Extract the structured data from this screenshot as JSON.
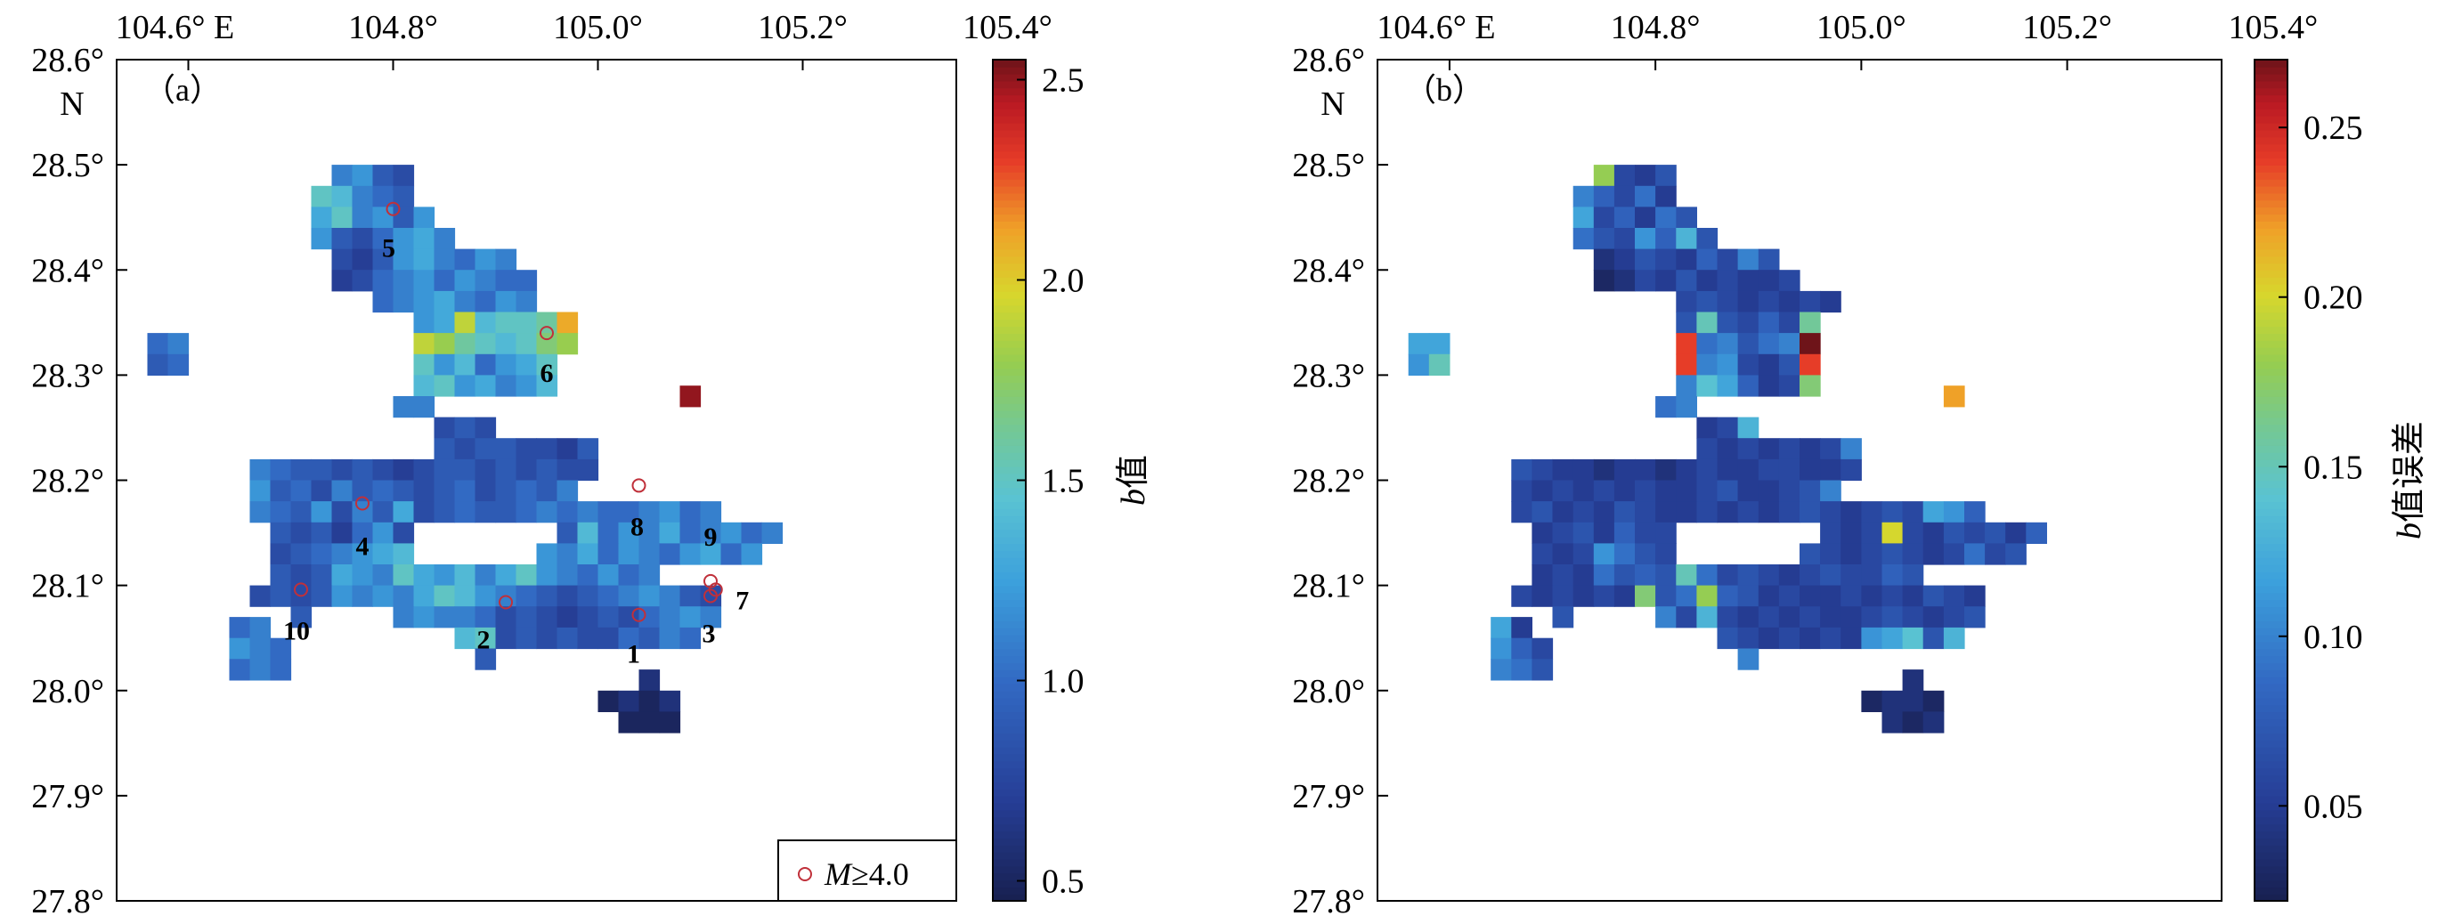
{
  "figure": {
    "x_ticks": [
      "104.6° E",
      "104.8°",
      "105.0°",
      "105.2°",
      "105.4°"
    ],
    "y_ticks": [
      "28.6°",
      "28.5°",
      "28.4°",
      "28.3°",
      "28.2°",
      "28.1°",
      "28.0°",
      "27.9°",
      "27.8°"
    ],
    "north_label": "N",
    "legend_label_italic": "M",
    "legend_label_rest": "≥4.0"
  },
  "chart_data": [
    {
      "type": "heatmap",
      "panel_label": "（a）",
      "xlim": [
        104.53,
        105.35
      ],
      "ylim": [
        27.8,
        28.6
      ],
      "cell_size_deg": 0.02,
      "colorbar": {
        "label_italic": "b",
        "label_rest": "值",
        "range": [
          0.45,
          2.55
        ],
        "ticks": [
          0.5,
          1.0,
          1.5,
          2.0,
          2.5
        ],
        "tick_labels": [
          "0.5",
          "1.0",
          "1.5",
          "2.0",
          "2.5"
        ]
      },
      "cell_values_note": "approximate b values per 0.02° grid cell; rows listed north to south",
      "rows": [
        {
          "lat": 28.49,
          "lon0": 104.74,
          "values": [
            1.1,
            1.2,
            0.9,
            0.8
          ]
        },
        {
          "lat": 28.47,
          "lon0": 104.72,
          "values": [
            1.5,
            1.4,
            1.1,
            1.0,
            0.9
          ]
        },
        {
          "lat": 28.45,
          "lon0": 104.72,
          "values": [
            1.3,
            1.5,
            1.1,
            1.2,
            0.9,
            1.2
          ]
        },
        {
          "lat": 28.43,
          "lon0": 104.72,
          "values": [
            1.2,
            0.9,
            0.8,
            1.0,
            1.2,
            1.3,
            1.1
          ]
        },
        {
          "lat": 28.41,
          "lon0": 104.74,
          "values": [
            0.8,
            0.7,
            0.9,
            1.2,
            1.3,
            1.1,
            1.0,
            1.2,
            1.1
          ]
        },
        {
          "lat": 28.39,
          "lon0": 104.74,
          "values": [
            0.7,
            0.8,
            1.0,
            1.1,
            1.2,
            1.0,
            1.2,
            1.1,
            1.0,
            1.0
          ]
        },
        {
          "lat": 28.37,
          "lon0": 104.78,
          "values": [
            1.0,
            1.1,
            1.2,
            1.3,
            1.1,
            1.0,
            1.2,
            1.1
          ]
        },
        {
          "lat": 28.35,
          "lon0": 104.82,
          "values": [
            1.2,
            1.3,
            1.9,
            1.4,
            1.5,
            1.5,
            1.6,
            2.1
          ]
        },
        {
          "lat": 28.33,
          "lon0": 104.56,
          "values": [
            1.0,
            1.1
          ]
        },
        {
          "lat": 28.33,
          "lon0": 104.82,
          "values": [
            1.9,
            1.8,
            1.6,
            1.5,
            1.4,
            1.5,
            1.7,
            1.8
          ]
        },
        {
          "lat": 28.31,
          "lon0": 104.56,
          "values": [
            0.9,
            1.0
          ]
        },
        {
          "lat": 28.31,
          "lon0": 104.82,
          "values": [
            1.5,
            1.2,
            1.4,
            1.0,
            1.2,
            1.3,
            1.5
          ]
        },
        {
          "lat": 28.29,
          "lon0": 104.82,
          "values": [
            1.4,
            1.5,
            1.2,
            1.3,
            1.1,
            1.2,
            1.4
          ]
        },
        {
          "lat": 28.28,
          "lon0": 105.08,
          "values": [
            2.5
          ]
        },
        {
          "lat": 28.27,
          "lon0": 104.8,
          "values": [
            1.1,
            1.1
          ]
        },
        {
          "lat": 28.25,
          "lon0": 104.84,
          "values": [
            0.8,
            0.9,
            0.8
          ]
        },
        {
          "lat": 28.23,
          "lon0": 104.84,
          "values": [
            0.9,
            0.8,
            0.9,
            0.9,
            0.8,
            0.8,
            0.7,
            0.9
          ]
        },
        {
          "lat": 28.21,
          "lon0": 104.66,
          "values": [
            1.1,
            1.0,
            0.9,
            0.9,
            0.8,
            0.9,
            0.8,
            0.7,
            0.8,
            0.9,
            0.9,
            0.8,
            0.9,
            0.8,
            0.9,
            0.8,
            0.8
          ]
        },
        {
          "lat": 28.19,
          "lon0": 104.66,
          "values": [
            1.2,
            0.9,
            1.0,
            0.8,
            1.1,
            0.9,
            1.0,
            0.9,
            0.8,
            0.9,
            1.0,
            0.8,
            0.9,
            1.0,
            0.9,
            1.1
          ]
        },
        {
          "lat": 28.17,
          "lon0": 104.66,
          "values": [
            1.1,
            1.0,
            0.9,
            1.2,
            0.8,
            1.1,
            0.9,
            1.3,
            0.8,
            0.9,
            1.0,
            0.9,
            0.9,
            1.0,
            1.1,
            1.0,
            1.1,
            1.0,
            1.0,
            1.1,
            1.2,
            1.0,
            1.1
          ]
        },
        {
          "lat": 28.15,
          "lon0": 104.68,
          "values": [
            0.9,
            0.8,
            0.9,
            0.7,
            1.0,
            1.2,
            0.8
          ]
        },
        {
          "lat": 28.15,
          "lon0": 104.96,
          "values": [
            0.9,
            1.4,
            1.0,
            1.2,
            1.1,
            1.3,
            1.0,
            1.1,
            1.2,
            1.0,
            1.1
          ]
        },
        {
          "lat": 28.13,
          "lon0": 104.68,
          "values": [
            0.8,
            0.9,
            1.0,
            1.1,
            1.2,
            1.3,
            1.4
          ]
        },
        {
          "lat": 28.13,
          "lon0": 104.94,
          "values": [
            1.2,
            1.1,
            1.3,
            1.0,
            1.2,
            1.1,
            1.0,
            1.2,
            1.3,
            1.0,
            1.2
          ]
        },
        {
          "lat": 28.11,
          "lon0": 104.68,
          "values": [
            0.9,
            0.8,
            0.9,
            1.3,
            1.2,
            1.1,
            1.5,
            1.3,
            1.2,
            1.4,
            1.1,
            1.3,
            1.5,
            1.2,
            1.1,
            1.0,
            1.2,
            1.0,
            1.1
          ]
        },
        {
          "lat": 28.09,
          "lon0": 104.66,
          "values": [
            0.8,
            0.9,
            0.8,
            0.9,
            1.2,
            1.1,
            1.2,
            1.1,
            1.3,
            1.5,
            1.4,
            1.2,
            1.1,
            1.0,
            0.9,
            0.8,
            0.9,
            1.0,
            1.1,
            1.2,
            1.1,
            0.9,
            0.8
          ]
        },
        {
          "lat": 28.07,
          "lon0": 104.7,
          "values": [
            0.9
          ]
        },
        {
          "lat": 28.07,
          "lon0": 104.8,
          "values": [
            1.1,
            1.2,
            1.1,
            1.1,
            1.0,
            0.8,
            0.9,
            0.8,
            0.7,
            0.8,
            0.9,
            0.8,
            1.0,
            1.1,
            1.2,
            1.1
          ]
        },
        {
          "lat": 28.06,
          "lon0": 104.64,
          "values": [
            1.0,
            1.1
          ]
        },
        {
          "lat": 28.05,
          "lon0": 104.86,
          "values": [
            1.4,
            1.5,
            0.8,
            0.9,
            0.8,
            0.9,
            0.8,
            0.8,
            1.0,
            0.9,
            1.1,
            1.0
          ]
        },
        {
          "lat": 28.04,
          "lon0": 104.64,
          "values": [
            1.2,
            1.1,
            1.0
          ]
        },
        {
          "lat": 28.03,
          "lon0": 104.88,
          "values": [
            0.9
          ]
        },
        {
          "lat": 28.02,
          "lon0": 104.64,
          "values": [
            1.0,
            1.1,
            1.0
          ]
        },
        {
          "lat": 28.01,
          "lon0": 105.04,
          "values": [
            0.6
          ]
        },
        {
          "lat": 27.99,
          "lon0": 105.0,
          "values": [
            0.5,
            0.6,
            0.5,
            0.6
          ]
        },
        {
          "lat": 27.97,
          "lon0": 105.02,
          "values": [
            0.5,
            0.5,
            0.5
          ]
        }
      ],
      "events": [
        {
          "id": "1",
          "lon": 105.04,
          "lat": 28.072
        },
        {
          "id": "2",
          "lon": 104.91,
          "lat": 28.084
        },
        {
          "id": "3",
          "lon": 105.11,
          "lat": 28.09
        },
        {
          "id": "4",
          "lon": 104.77,
          "lat": 28.178
        },
        {
          "id": "5",
          "lon": 104.8,
          "lat": 28.458
        },
        {
          "id": "6",
          "lon": 104.95,
          "lat": 28.34
        },
        {
          "id": "7",
          "lon": 105.115,
          "lat": 28.096
        },
        {
          "id": "8",
          "lon": 105.04,
          "lat": 28.195
        },
        {
          "id": "9",
          "lon": 105.11,
          "lat": 28.104
        },
        {
          "id": "10",
          "lon": 104.71,
          "lat": 28.096
        }
      ]
    },
    {
      "type": "heatmap",
      "panel_label": "（b）",
      "xlim": [
        104.53,
        105.35
      ],
      "ylim": [
        27.8,
        28.6
      ],
      "cell_size_deg": 0.02,
      "colorbar": {
        "label_italic": "b",
        "label_rest": "值误差",
        "range": [
          0.022,
          0.27
        ],
        "ticks": [
          0.05,
          0.1,
          0.15,
          0.2,
          0.25
        ],
        "tick_labels": [
          "0.05",
          "0.10",
          "0.15",
          "0.20",
          "0.25"
        ]
      },
      "cell_values_note": "approximate b-value errors per 0.02° grid cell; rows listed north to south",
      "rows": [
        {
          "lat": 28.49,
          "lon0": 104.74,
          "values": [
            0.18,
            0.06,
            0.05,
            0.07
          ]
        },
        {
          "lat": 28.47,
          "lon0": 104.72,
          "values": [
            0.1,
            0.08,
            0.06,
            0.09,
            0.05
          ]
        },
        {
          "lat": 28.45,
          "lon0": 104.72,
          "values": [
            0.12,
            0.06,
            0.08,
            0.05,
            0.09,
            0.07
          ]
        },
        {
          "lat": 28.43,
          "lon0": 104.72,
          "values": [
            0.09,
            0.07,
            0.06,
            0.11,
            0.08,
            0.13,
            0.07
          ]
        },
        {
          "lat": 28.41,
          "lon0": 104.74,
          "values": [
            0.04,
            0.05,
            0.07,
            0.06,
            0.05,
            0.08,
            0.06,
            0.1,
            0.07
          ]
        },
        {
          "lat": 28.39,
          "lon0": 104.74,
          "values": [
            0.03,
            0.04,
            0.06,
            0.05,
            0.07,
            0.05,
            0.06,
            0.05,
            0.05,
            0.06
          ]
        },
        {
          "lat": 28.37,
          "lon0": 104.82,
          "values": [
            0.06,
            0.07,
            0.06,
            0.05,
            0.06,
            0.05,
            0.06,
            0.05
          ]
        },
        {
          "lat": 28.35,
          "lon0": 104.82,
          "values": [
            0.07,
            0.15,
            0.07,
            0.06,
            0.08,
            0.06,
            0.16
          ]
        },
        {
          "lat": 28.33,
          "lon0": 104.56,
          "values": [
            0.12,
            0.12
          ]
        },
        {
          "lat": 28.33,
          "lon0": 104.82,
          "values": [
            0.24,
            0.09,
            0.1,
            0.07,
            0.09,
            0.1,
            0.27
          ]
        },
        {
          "lat": 28.31,
          "lon0": 104.56,
          "values": [
            0.11,
            0.15
          ]
        },
        {
          "lat": 28.31,
          "lon0": 104.82,
          "values": [
            0.24,
            0.1,
            0.11,
            0.06,
            0.05,
            0.07,
            0.24
          ]
        },
        {
          "lat": 28.29,
          "lon0": 104.82,
          "values": [
            0.1,
            0.14,
            0.12,
            0.08,
            0.05,
            0.06,
            0.17
          ]
        },
        {
          "lat": 28.28,
          "lon0": 105.08,
          "values": [
            0.22
          ]
        },
        {
          "lat": 28.27,
          "lon0": 104.8,
          "values": [
            0.09,
            0.1
          ]
        },
        {
          "lat": 28.25,
          "lon0": 104.84,
          "values": [
            0.05,
            0.06,
            0.13
          ]
        },
        {
          "lat": 28.23,
          "lon0": 104.84,
          "values": [
            0.06,
            0.05,
            0.06,
            0.05,
            0.06,
            0.05,
            0.06,
            0.1
          ]
        },
        {
          "lat": 28.21,
          "lon0": 104.66,
          "values": [
            0.07,
            0.06,
            0.05,
            0.05,
            0.04,
            0.05,
            0.05,
            0.04,
            0.05,
            0.06,
            0.05,
            0.05,
            0.06,
            0.06,
            0.05,
            0.05,
            0.06
          ]
        },
        {
          "lat": 28.19,
          "lon0": 104.66,
          "values": [
            0.06,
            0.05,
            0.06,
            0.05,
            0.06,
            0.05,
            0.06,
            0.05,
            0.05,
            0.06,
            0.07,
            0.05,
            0.05,
            0.06,
            0.07,
            0.1
          ]
        },
        {
          "lat": 28.17,
          "lon0": 104.66,
          "values": [
            0.06,
            0.07,
            0.05,
            0.06,
            0.05,
            0.07,
            0.06,
            0.05,
            0.05,
            0.06,
            0.05,
            0.06,
            0.05,
            0.06,
            0.07,
            0.06,
            0.05,
            0.06,
            0.07,
            0.06,
            0.12,
            0.11,
            0.08
          ]
        },
        {
          "lat": 28.15,
          "lon0": 104.68,
          "values": [
            0.05,
            0.06,
            0.07,
            0.05,
            0.08,
            0.06,
            0.06
          ]
        },
        {
          "lat": 28.15,
          "lon0": 104.96,
          "values": [
            0.06,
            0.05,
            0.06,
            0.2,
            0.06,
            0.05,
            0.07,
            0.06,
            0.07,
            0.05,
            0.08
          ]
        },
        {
          "lat": 28.13,
          "lon0": 104.68,
          "values": [
            0.06,
            0.05,
            0.06,
            0.11,
            0.09,
            0.07,
            0.06
          ]
        },
        {
          "lat": 28.13,
          "lon0": 104.94,
          "values": [
            0.07,
            0.06,
            0.05,
            0.06,
            0.07,
            0.06,
            0.05,
            0.06,
            0.09,
            0.06,
            0.07
          ]
        },
        {
          "lat": 28.11,
          "lon0": 104.68,
          "values": [
            0.05,
            0.06,
            0.05,
            0.09,
            0.07,
            0.08,
            0.07,
            0.15,
            0.09,
            0.06,
            0.07,
            0.06,
            0.05,
            0.06,
            0.07,
            0.06,
            0.06,
            0.08,
            0.07
          ]
        },
        {
          "lat": 28.09,
          "lon0": 104.66,
          "values": [
            0.06,
            0.05,
            0.06,
            0.05,
            0.06,
            0.05,
            0.17,
            0.07,
            0.09,
            0.18,
            0.08,
            0.07,
            0.05,
            0.06,
            0.05,
            0.05,
            0.06,
            0.05,
            0.06,
            0.05,
            0.07,
            0.06,
            0.05
          ]
        },
        {
          "lat": 28.07,
          "lon0": 104.7,
          "values": [
            0.07
          ]
        },
        {
          "lat": 28.07,
          "lon0": 104.8,
          "values": [
            0.1,
            0.06,
            0.13,
            0.06,
            0.05,
            0.06,
            0.05,
            0.06,
            0.05,
            0.05,
            0.06,
            0.07,
            0.06,
            0.05,
            0.06,
            0.07
          ]
        },
        {
          "lat": 28.06,
          "lon0": 104.64,
          "values": [
            0.12,
            0.05
          ]
        },
        {
          "lat": 28.05,
          "lon0": 104.86,
          "values": [
            0.07,
            0.06,
            0.05,
            0.06,
            0.05,
            0.06,
            0.05,
            0.11,
            0.12,
            0.14,
            0.07,
            0.13
          ]
        },
        {
          "lat": 28.04,
          "lon0": 104.64,
          "values": [
            0.11,
            0.08,
            0.06
          ]
        },
        {
          "lat": 28.03,
          "lon0": 104.88,
          "values": [
            0.1
          ]
        },
        {
          "lat": 28.02,
          "lon0": 104.64,
          "values": [
            0.1,
            0.09,
            0.07
          ]
        },
        {
          "lat": 28.01,
          "lon0": 105.04,
          "values": [
            0.04
          ]
        },
        {
          "lat": 27.99,
          "lon0": 105.0,
          "values": [
            0.03,
            0.04,
            0.04,
            0.03
          ]
        },
        {
          "lat": 27.97,
          "lon0": 105.02,
          "values": [
            0.04,
            0.03,
            0.04
          ]
        }
      ]
    }
  ]
}
